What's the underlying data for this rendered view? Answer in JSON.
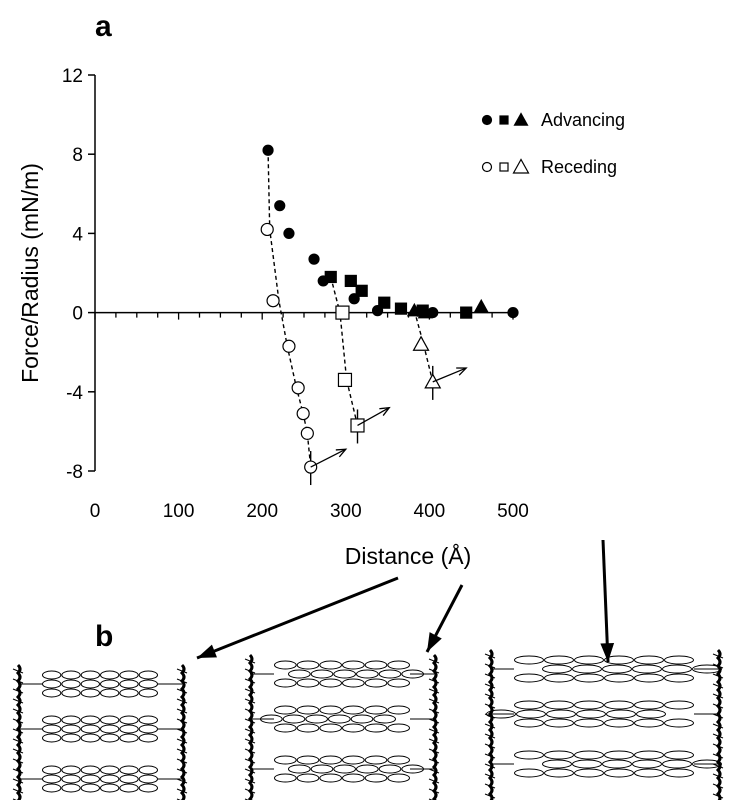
{
  "panel_a_label": "a",
  "panel_b_label": "b",
  "chart_data": {
    "type": "scatter",
    "xlabel": "Distance (Å)",
    "ylabel": "Force/Radius (mN/m)",
    "xlim": [
      0,
      500
    ],
    "ylim": [
      -8,
      12
    ],
    "xticks": [
      "0",
      "100",
      "200",
      "300",
      "400",
      "500"
    ],
    "yticks": [
      "-8",
      "-4",
      "0",
      "4",
      "8",
      "12"
    ],
    "zero_line": true,
    "grid": false,
    "legend": {
      "placement": "top-right",
      "entries": [
        {
          "symbols": "●■▲",
          "label": "Advancing"
        },
        {
          "symbols": "○□△",
          "label": "Receding"
        }
      ]
    },
    "series": [
      {
        "marker": "filled-circle",
        "group": "Advancing",
        "points": [
          [
            207,
            8.2
          ],
          [
            221,
            5.4
          ],
          [
            232,
            4.0
          ],
          [
            262,
            2.7
          ],
          [
            273,
            1.6
          ],
          [
            310,
            0.7
          ],
          [
            338,
            0.1
          ],
          [
            404,
            0.0
          ],
          [
            500,
            0.0
          ]
        ]
      },
      {
        "marker": "filled-square",
        "group": "Advancing",
        "points": [
          [
            282,
            1.8
          ],
          [
            306,
            1.6
          ],
          [
            319,
            1.1
          ],
          [
            346,
            0.5
          ],
          [
            366,
            0.2
          ],
          [
            392,
            0.1
          ],
          [
            444,
            0.0
          ]
        ]
      },
      {
        "marker": "filled-triangle",
        "group": "Advancing",
        "points": [
          [
            382,
            0.1
          ],
          [
            395,
            0.0
          ],
          [
            462,
            0.3
          ]
        ]
      },
      {
        "marker": "open-circle",
        "group": "Receding",
        "points": [
          [
            206,
            4.2
          ],
          [
            213,
            0.6
          ],
          [
            232,
            -1.7
          ],
          [
            243,
            -3.8
          ],
          [
            249,
            -5.1
          ],
          [
            254,
            -6.1
          ],
          [
            258,
            -7.8
          ]
        ]
      },
      {
        "marker": "open-square",
        "group": "Receding",
        "points": [
          [
            296,
            0.0
          ],
          [
            299,
            -3.4
          ],
          [
            314,
            -5.7
          ]
        ]
      },
      {
        "marker": "open-triangle",
        "group": "Receding",
        "points": [
          [
            390,
            -1.6
          ],
          [
            404,
            -3.5
          ]
        ]
      }
    ],
    "dashed_fits": [
      [
        [
          207,
          8.2
        ],
        [
          209,
          4.2
        ],
        [
          220,
          0.6
        ],
        [
          230,
          -1.7
        ],
        [
          241,
          -3.8
        ],
        [
          249,
          -5.1
        ],
        [
          254,
          -6.1
        ],
        [
          258,
          -7.8
        ]
      ],
      [
        [
          282,
          1.8
        ],
        [
          293,
          0.0
        ],
        [
          301,
          -3.4
        ],
        [
          314,
          -5.7
        ]
      ],
      [
        [
          382,
          0.1
        ],
        [
          393,
          -1.6
        ],
        [
          404,
          -3.5
        ]
      ]
    ],
    "jump_arrows": [
      {
        "from": [
          258,
          -7.8
        ],
        "to": [
          300,
          -6.9
        ]
      },
      {
        "from": [
          314,
          -5.7
        ],
        "to": [
          352,
          -4.8
        ]
      },
      {
        "from": [
          404,
          -3.5
        ],
        "to": [
          444,
          -2.8
        ]
      }
    ]
  },
  "schematics": [
    {
      "layers": [
        [
          6,
          6
        ],
        [
          6,
          6
        ],
        [
          6,
          6
        ]
      ],
      "offset": 0
    },
    {
      "layers": [
        [
          6,
          6
        ],
        [
          6,
          6
        ],
        [
          6,
          6
        ]
      ],
      "offset": 1
    },
    {
      "layers": [
        [
          6,
          6
        ],
        [
          6,
          6
        ],
        [
          6,
          6
        ]
      ],
      "offset": 2
    }
  ]
}
